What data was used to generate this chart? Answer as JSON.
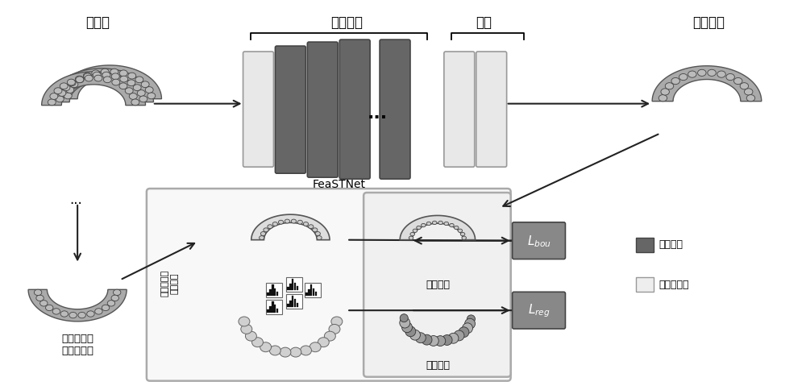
{
  "bg_color": "#ffffff",
  "fig_width": 10.0,
  "fig_height": 4.84,
  "dpi": 100,
  "texts": {
    "descriptor": "描述子",
    "feature_extract": "特征提取",
    "classify": "分类",
    "crown_seg": "牙冠分割",
    "input_model": "输入三维数\n字牙列模型",
    "feastnet": "FeaSTNet",
    "crown_boundary": "牙冠边界",
    "crown_region": "牙冠区域",
    "L_bou": "$L_{bou}$",
    "L_reg": "$L_{reg}$",
    "legend_conv": "图卷积层",
    "legend_linear": "线性连接层",
    "vertical_label": "牙冠区域及\n边界先验"
  },
  "colors": {
    "dark_gray": "#555555",
    "block_dark": "#666666",
    "block_light": "#e8e8e8",
    "medium_gray": "#888888",
    "light_gray": "#cccccc",
    "very_light_gray": "#eeeeee",
    "box_border": "#aaaaaa",
    "arrow_color": "#222222",
    "white": "#ffffff",
    "L_box_color": "#888888",
    "tooth_fill": "#b0b0b0",
    "tooth_edge": "#555555"
  }
}
